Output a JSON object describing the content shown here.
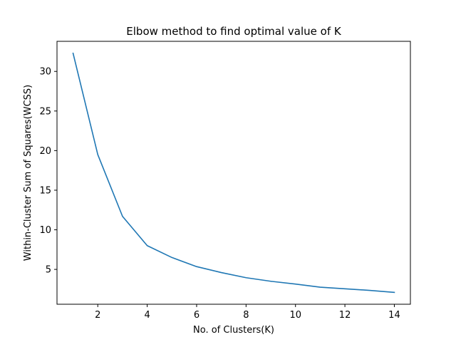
{
  "chart_data": {
    "type": "line",
    "title": "Elbow method to find optimal value of K",
    "xlabel": "No. of Clusters(K)",
    "ylabel": "Within-Cluster Sum of Squares(WCSS)",
    "xlim": [
      0.35,
      14.65
    ],
    "ylim": [
      0.6,
      33.8
    ],
    "xticks": [
      2,
      4,
      6,
      8,
      10,
      12,
      14
    ],
    "yticks": [
      5,
      10,
      15,
      20,
      25,
      30
    ],
    "grid": false,
    "series": [
      {
        "color": "#1f77b4",
        "x": [
          1,
          2,
          3,
          4,
          5,
          6,
          7,
          8,
          9,
          10,
          11,
          12,
          13,
          14
        ],
        "y": [
          32.3,
          19.5,
          11.7,
          8.0,
          6.5,
          5.35,
          4.6,
          3.95,
          3.5,
          3.15,
          2.75,
          2.55,
          2.35,
          2.1
        ]
      }
    ]
  }
}
